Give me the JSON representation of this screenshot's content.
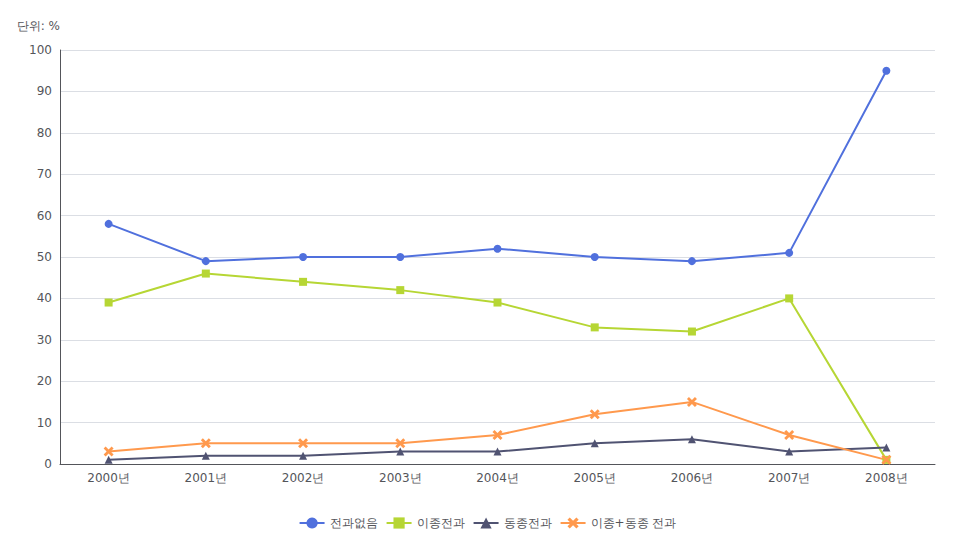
{
  "chart_data": {
    "type": "line",
    "ylabel": "단위: %",
    "categories": [
      "2000년",
      "2001년",
      "2002년",
      "2003년",
      "2004년",
      "2005년",
      "2006년",
      "2007년",
      "2008년"
    ],
    "series": [
      {
        "name": "전과없음",
        "marker": "circle",
        "values": [
          58,
          49,
          50,
          50,
          52,
          50,
          49,
          51,
          95
        ]
      },
      {
        "name": "이종전과",
        "marker": "square",
        "values": [
          39,
          46,
          44,
          42,
          39,
          33,
          32,
          40,
          1
        ]
      },
      {
        "name": "동종전과",
        "marker": "triangle",
        "values": [
          1,
          2,
          2,
          3,
          3,
          5,
          6,
          3,
          4
        ]
      },
      {
        "name": "이종+동종 전과",
        "marker": "x",
        "values": [
          3,
          5,
          5,
          5,
          7,
          12,
          15,
          7,
          1
        ]
      }
    ],
    "ylim": [
      0,
      100
    ],
    "yticks": [
      0,
      10,
      20,
      30,
      40,
      50,
      60,
      70,
      80,
      90,
      100
    ],
    "grid": true,
    "legend": "bottom"
  }
}
